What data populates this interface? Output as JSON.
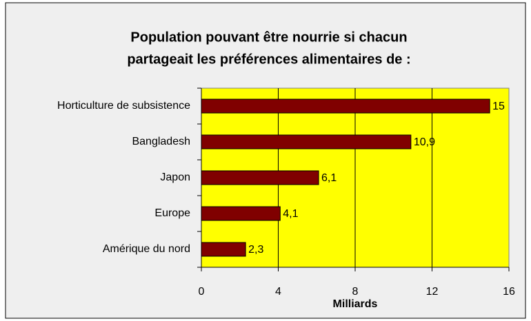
{
  "chart_data": {
    "type": "barh",
    "title": [
      "Population pouvant être nourrie si chacun",
      "partageait les préférences alimentaires de :"
    ],
    "categories": [
      "Horticulture de subsistence",
      "Bangladesh",
      "Japon",
      "Europe",
      "Amérique du nord"
    ],
    "values": [
      15,
      10.9,
      6.1,
      4.1,
      2.3
    ],
    "value_labels": [
      "15",
      "10,9",
      "6,1",
      "4,1",
      "2,3"
    ],
    "color": "#800000",
    "xlabel": "Milliards",
    "xlim": [
      0,
      16
    ],
    "xticks": [
      0,
      4,
      8,
      12,
      16
    ],
    "grid": true
  }
}
